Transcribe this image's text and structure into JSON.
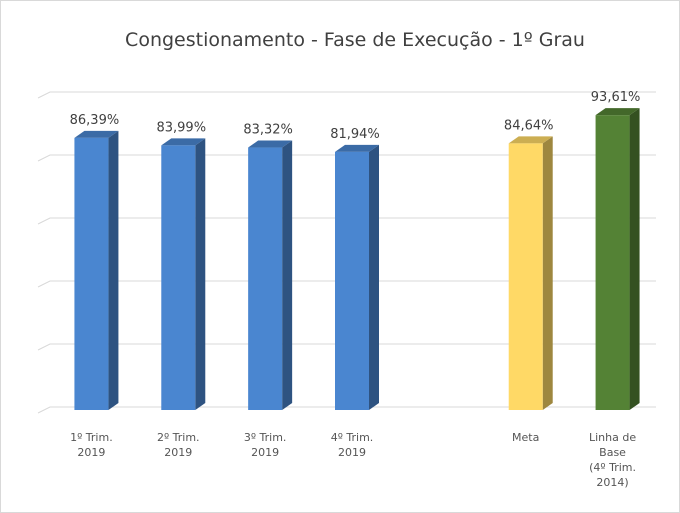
{
  "chart_data": {
    "type": "bar3d",
    "title": "Congestionamento - Fase de Execução - 1º Grau",
    "categories": [
      "1º Trim.\n2019",
      "2º Trim.\n2019",
      "3º Trim.\n2019",
      "4º Trim.\n2019",
      null,
      "Meta",
      "Linha de\nBase\n(4º Trim.\n2014)"
    ],
    "values": [
      86.39,
      83.99,
      83.32,
      81.94,
      null,
      84.64,
      93.61
    ],
    "value_labels": [
      "86,39%",
      "83,99%",
      "83,32%",
      "81,94%",
      null,
      "84,64%",
      "93,61%"
    ],
    "colors": [
      "#4a86d0",
      "#4a86d0",
      "#4a86d0",
      "#4a86d0",
      null,
      "#ffd966",
      "#548235"
    ],
    "ylim": [
      0,
      100
    ],
    "yticks": [
      0,
      20,
      40,
      60,
      80,
      100
    ],
    "grid": true
  }
}
